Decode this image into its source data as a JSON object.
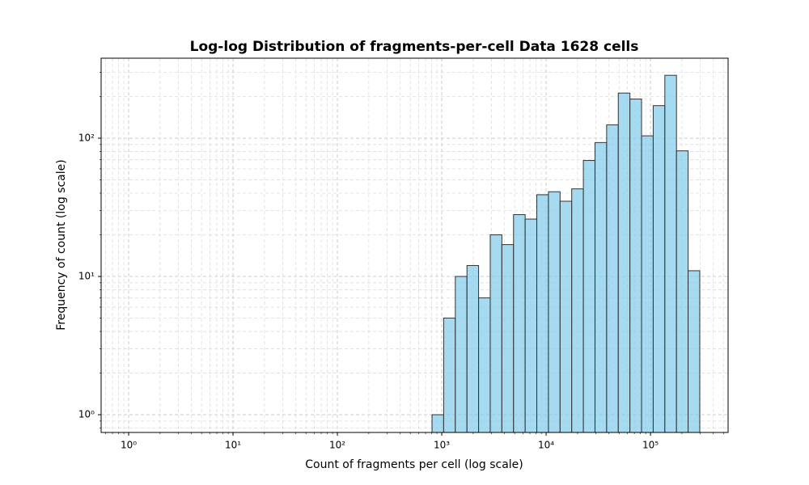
{
  "chart_data": {
    "type": "histogram",
    "title": "Log-log Distribution of fragments-per-cell Data 1628 cells",
    "xlabel": "Count of fragments per cell (log scale)",
    "ylabel": "Frequency of count (log scale)",
    "bins": [
      807,
      1043,
      1349,
      1744,
      2254,
      2914,
      3767,
      4870,
      6296,
      8140,
      10523,
      13604,
      17587,
      22737,
      29394,
      38001,
      49127,
      63511,
      82107,
      106148,
      137228,
      177408,
      229353,
      296507
    ],
    "values": [
      1,
      5,
      10,
      12,
      7,
      20,
      17,
      28,
      26,
      39,
      41,
      35,
      43,
      69,
      93,
      125,
      212,
      192,
      104,
      172,
      285,
      81,
      11
    ],
    "color": "#87ceeb",
    "edgecolor": "#333333",
    "xlog": true,
    "ylog": true,
    "grid": true,
    "minor_grid": true,
    "xlim": [
      0.545,
      554000
    ],
    "ylim": [
      0.744,
      379
    ],
    "xticks": [
      {
        "value": 1,
        "label": "10⁰"
      },
      {
        "value": 10,
        "label": "10¹"
      },
      {
        "value": 100,
        "label": "10²"
      },
      {
        "value": 1000,
        "label": "10³"
      },
      {
        "value": 10000,
        "label": "10⁴"
      },
      {
        "value": 100000,
        "label": "10⁵"
      }
    ],
    "yticks": [
      {
        "value": 1,
        "label": "10⁰"
      },
      {
        "value": 10,
        "label": "10¹"
      },
      {
        "value": 100,
        "label": "10²"
      }
    ]
  }
}
